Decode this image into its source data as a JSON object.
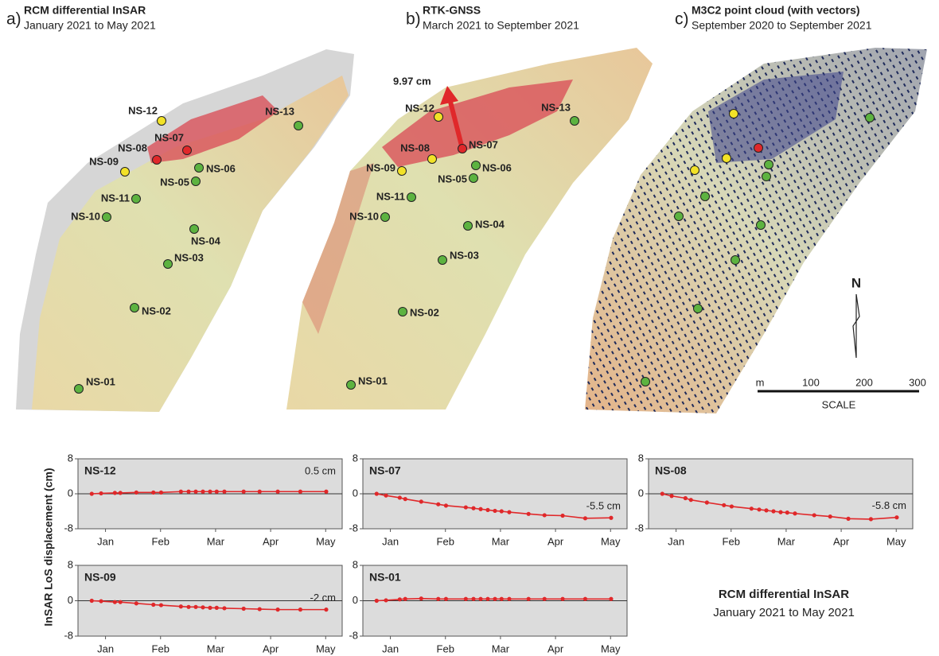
{
  "maps": [
    {
      "letter": "a)",
      "title": "RCM differential InSAR",
      "subtitle": "January 2021 to May 2021",
      "points": [
        {
          "label": "NS-12",
          "color": "#f2e227"
        },
        {
          "label": "NS-13",
          "color": "#5db340"
        },
        {
          "label": "NS-07",
          "color": "#e0282a"
        },
        {
          "label": "NS-08",
          "color": "#e0282a"
        },
        {
          "label": "NS-09",
          "color": "#f2e227"
        },
        {
          "label": "NS-06",
          "color": "#5db340"
        },
        {
          "label": "NS-05",
          "color": "#5db340"
        },
        {
          "label": "NS-11",
          "color": "#5db340"
        },
        {
          "label": "NS-10",
          "color": "#5db340"
        },
        {
          "label": "NS-04",
          "color": "#5db340"
        },
        {
          "label": "NS-03",
          "color": "#5db340"
        },
        {
          "label": "NS-02",
          "color": "#5db340"
        },
        {
          "label": "NS-01",
          "color": "#5db340"
        }
      ]
    },
    {
      "letter": "b)",
      "title": "RTK-GNSS",
      "subtitle": "March 2021 to September 2021",
      "arrow_label": "9.97 cm",
      "points": [
        {
          "label": "NS-12",
          "color": "#f2e227"
        },
        {
          "label": "NS-13",
          "color": "#5db340"
        },
        {
          "label": "NS-07",
          "color": "#e0282a"
        },
        {
          "label": "NS-08",
          "color": "#f2e227"
        },
        {
          "label": "NS-09",
          "color": "#f2e227"
        },
        {
          "label": "NS-06",
          "color": "#5db340"
        },
        {
          "label": "NS-05",
          "color": "#5db340"
        },
        {
          "label": "NS-11",
          "color": "#5db340"
        },
        {
          "label": "NS-10",
          "color": "#5db340"
        },
        {
          "label": "NS-04",
          "color": "#5db340"
        },
        {
          "label": "NS-03",
          "color": "#5db340"
        },
        {
          "label": "NS-02",
          "color": "#5db340"
        },
        {
          "label": "NS-01",
          "color": "#5db340"
        }
      ]
    },
    {
      "letter": "c)",
      "title": "M3C2 point cloud (with vectors)",
      "subtitle": "September 2020 to September 2021",
      "points": [
        {
          "color": "#f2e227"
        },
        {
          "color": "#5db340"
        },
        {
          "color": "#e0282a"
        },
        {
          "color": "#f2e227"
        },
        {
          "color": "#f2e227"
        },
        {
          "color": "#5db340"
        },
        {
          "color": "#5db340"
        },
        {
          "color": "#5db340"
        },
        {
          "color": "#5db340"
        },
        {
          "color": "#5db340"
        },
        {
          "color": "#5db340"
        },
        {
          "color": "#5db340"
        },
        {
          "color": "#5db340"
        }
      ]
    }
  ],
  "north": "N",
  "scale": {
    "unit": "m",
    "ticks": [
      "100",
      "200",
      "300"
    ],
    "label": "SCALE"
  },
  "y_axis_label": "InSAR LoS displacement (cm)",
  "caption": {
    "title": "RCM differential InSAR",
    "subtitle": "January 2021 to May 2021"
  },
  "chart_data": [
    {
      "type": "line",
      "title": "NS-12",
      "annotation": "0.5 cm",
      "color": "#e0282a",
      "zero_line": true,
      "x": [
        0.75,
        0.92,
        1.17,
        1.27,
        1.56,
        1.87,
        2.01,
        2.37,
        2.51,
        2.64,
        2.77,
        2.9,
        3.02,
        3.16,
        3.51,
        3.8,
        4.13,
        4.54,
        5.01
      ],
      "values": [
        0,
        0.1,
        0.2,
        0.2,
        0.3,
        0.3,
        0.3,
        0.5,
        0.5,
        0.5,
        0.5,
        0.5,
        0.5,
        0.5,
        0.5,
        0.5,
        0.5,
        0.5,
        0.5
      ],
      "xlim": [
        0.5,
        5.3
      ],
      "xticks": [
        {
          "value": 1,
          "label": "Jan"
        },
        {
          "value": 2,
          "label": "Feb"
        },
        {
          "value": 3,
          "label": "Mar"
        },
        {
          "value": 4,
          "label": "Apr"
        },
        {
          "value": 5,
          "label": "May"
        }
      ],
      "ylim": [
        -8,
        8
      ],
      "yticks": [
        -8,
        0,
        8
      ]
    },
    {
      "type": "line",
      "title": "NS-07",
      "annotation": "-5.5 cm",
      "color": "#e0282a",
      "zero_line": true,
      "x": [
        0.75,
        0.92,
        1.17,
        1.27,
        1.56,
        1.87,
        2.01,
        2.37,
        2.51,
        2.64,
        2.77,
        2.9,
        3.02,
        3.16,
        3.51,
        3.8,
        4.13,
        4.54,
        5.01
      ],
      "values": [
        0,
        -0.4,
        -0.9,
        -1.2,
        -1.8,
        -2.4,
        -2.7,
        -3.1,
        -3.3,
        -3.5,
        -3.7,
        -3.9,
        -4.0,
        -4.2,
        -4.6,
        -4.9,
        -5.0,
        -5.6,
        -5.5
      ],
      "xlim": [
        0.5,
        5.3
      ],
      "xticks": [
        {
          "value": 1,
          "label": "Jan"
        },
        {
          "value": 2,
          "label": "Feb"
        },
        {
          "value": 3,
          "label": "Mar"
        },
        {
          "value": 4,
          "label": "Apr"
        },
        {
          "value": 5,
          "label": "May"
        }
      ],
      "ylim": [
        -8,
        8
      ],
      "yticks": [
        -8,
        0,
        8
      ]
    },
    {
      "type": "line",
      "title": "NS-08",
      "annotation": "-5.8 cm",
      "color": "#e0282a",
      "zero_line": true,
      "x": [
        0.75,
        0.92,
        1.17,
        1.27,
        1.56,
        1.87,
        2.01,
        2.37,
        2.51,
        2.64,
        2.77,
        2.9,
        3.02,
        3.16,
        3.51,
        3.8,
        4.13,
        4.54,
        5.01
      ],
      "values": [
        0,
        -0.5,
        -1.0,
        -1.4,
        -2.0,
        -2.6,
        -2.9,
        -3.4,
        -3.6,
        -3.8,
        -4.0,
        -4.2,
        -4.3,
        -4.5,
        -4.9,
        -5.2,
        -5.7,
        -5.8,
        -5.4
      ],
      "xlim": [
        0.5,
        5.3
      ],
      "xticks": [
        {
          "value": 1,
          "label": "Jan"
        },
        {
          "value": 2,
          "label": "Feb"
        },
        {
          "value": 3,
          "label": "Mar"
        },
        {
          "value": 4,
          "label": "Apr"
        },
        {
          "value": 5,
          "label": "May"
        }
      ],
      "ylim": [
        -8,
        8
      ],
      "yticks": [
        -8,
        0,
        8
      ]
    },
    {
      "type": "line",
      "title": "NS-09",
      "annotation": "-2 cm",
      "color": "#e0282a",
      "zero_line": true,
      "x": [
        0.75,
        0.92,
        1.17,
        1.27,
        1.56,
        1.87,
        2.01,
        2.37,
        2.51,
        2.64,
        2.77,
        2.9,
        3.02,
        3.16,
        3.51,
        3.8,
        4.13,
        4.54,
        5.01
      ],
      "values": [
        0,
        -0.1,
        -0.3,
        -0.3,
        -0.6,
        -0.9,
        -1.0,
        -1.3,
        -1.4,
        -1.4,
        -1.5,
        -1.6,
        -1.6,
        -1.7,
        -1.8,
        -1.9,
        -2.0,
        -2.0,
        -2.0
      ],
      "xlim": [
        0.5,
        5.3
      ],
      "xticks": [
        {
          "value": 1,
          "label": "Jan"
        },
        {
          "value": 2,
          "label": "Feb"
        },
        {
          "value": 3,
          "label": "Mar"
        },
        {
          "value": 4,
          "label": "Apr"
        },
        {
          "value": 5,
          "label": "May"
        }
      ],
      "ylim": [
        -8,
        8
      ],
      "yticks": [
        -8,
        0,
        8
      ]
    },
    {
      "type": "line",
      "title": "NS-01",
      "color": "#e0282a",
      "zero_line": true,
      "x": [
        0.75,
        0.92,
        1.17,
        1.27,
        1.56,
        1.87,
        2.01,
        2.37,
        2.51,
        2.64,
        2.77,
        2.9,
        3.02,
        3.16,
        3.51,
        3.8,
        4.13,
        4.54,
        5.01
      ],
      "values": [
        0,
        0.1,
        0.3,
        0.4,
        0.5,
        0.4,
        0.4,
        0.4,
        0.4,
        0.4,
        0.4,
        0.4,
        0.4,
        0.4,
        0.4,
        0.4,
        0.4,
        0.4,
        0.4
      ],
      "xlim": [
        0.5,
        5.3
      ],
      "xticks": [
        {
          "value": 1,
          "label": "Jan"
        },
        {
          "value": 2,
          "label": "Feb"
        },
        {
          "value": 3,
          "label": "Mar"
        },
        {
          "value": 4,
          "label": "Apr"
        },
        {
          "value": 5,
          "label": "May"
        }
      ],
      "ylim": [
        -8,
        8
      ],
      "yticks": [
        -8,
        0,
        8
      ]
    }
  ]
}
